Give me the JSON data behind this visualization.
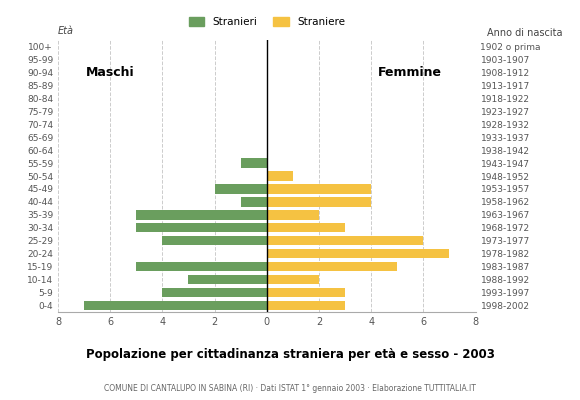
{
  "age_groups": [
    "0-4",
    "5-9",
    "10-14",
    "15-19",
    "20-24",
    "25-29",
    "30-34",
    "35-39",
    "40-44",
    "45-49",
    "50-54",
    "55-59",
    "60-64",
    "65-69",
    "70-74",
    "75-79",
    "80-84",
    "85-89",
    "90-94",
    "95-99",
    "100+"
  ],
  "birth_years": [
    "1998-2002",
    "1993-1997",
    "1988-1992",
    "1983-1987",
    "1978-1982",
    "1973-1977",
    "1968-1972",
    "1963-1967",
    "1958-1962",
    "1953-1957",
    "1948-1952",
    "1943-1947",
    "1938-1942",
    "1933-1937",
    "1928-1932",
    "1923-1927",
    "1918-1922",
    "1913-1917",
    "1908-1912",
    "1903-1907",
    "1902 o prima"
  ],
  "males": [
    7,
    4,
    3,
    5,
    0,
    4,
    5,
    5,
    1,
    2,
    0,
    1,
    0,
    0,
    0,
    0,
    0,
    0,
    0,
    0,
    0
  ],
  "females": [
    3,
    3,
    2,
    5,
    7,
    6,
    3,
    2,
    4,
    4,
    1,
    0,
    0,
    0,
    0,
    0,
    0,
    0,
    0,
    0,
    0
  ],
  "male_color": "#6a9e5e",
  "female_color": "#f5c242",
  "background_color": "#ffffff",
  "grid_color": "#cccccc",
  "title": "Popolazione per cittadinanza straniera per età e sesso - 2003",
  "subtitle": "COMUNE DI CANTALUPO IN SABINA (RI) · Dati ISTAT 1° gennaio 2003 · Elaborazione TUTTITALIA.IT",
  "label_left": "Maschi",
  "label_right": "Femmine",
  "ylabel_left": "Età",
  "ylabel_right": "Anno di nascita",
  "legend_male": "Stranieri",
  "legend_female": "Straniere",
  "xlim": 8
}
